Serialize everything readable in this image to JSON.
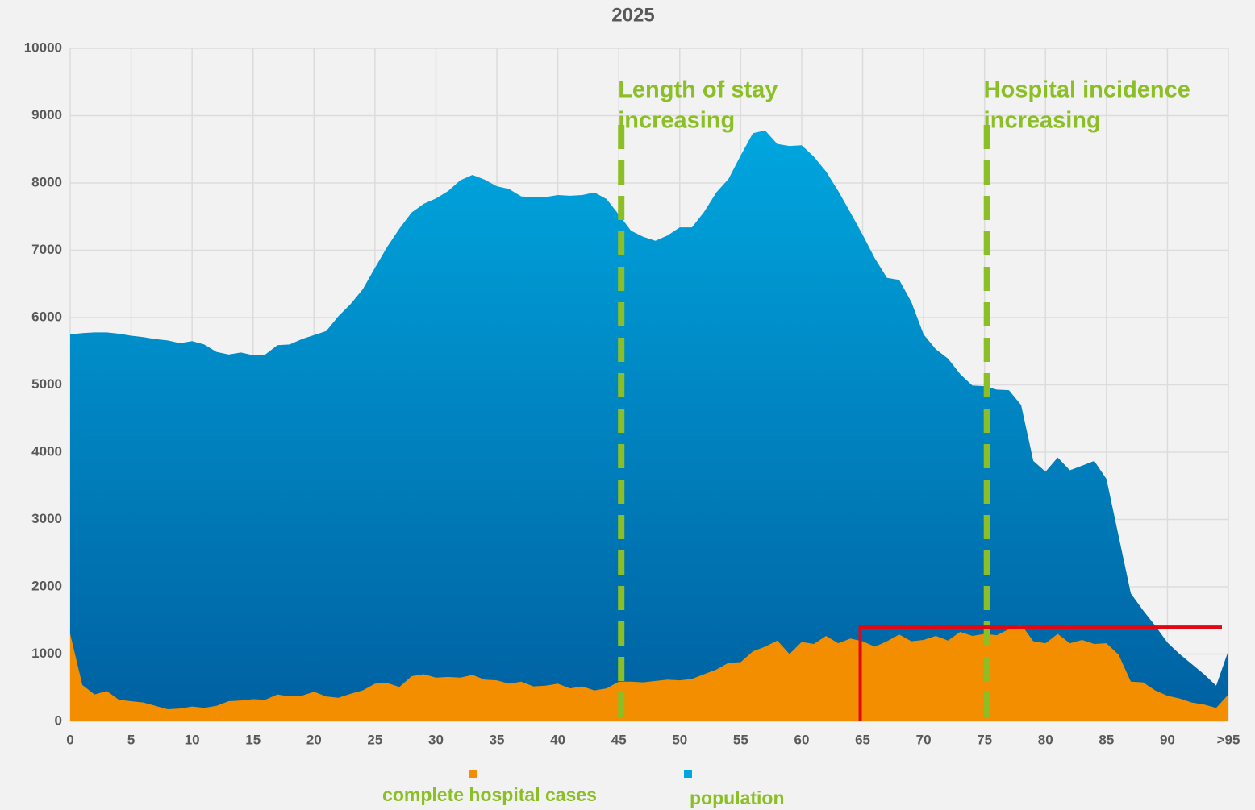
{
  "chart_data": {
    "type": "area",
    "title": "2025",
    "x": [
      0,
      1,
      2,
      3,
      4,
      5,
      6,
      7,
      8,
      9,
      10,
      11,
      12,
      13,
      14,
      15,
      16,
      17,
      18,
      19,
      20,
      21,
      22,
      23,
      24,
      25,
      26,
      27,
      28,
      29,
      30,
      31,
      32,
      33,
      34,
      35,
      36,
      37,
      38,
      39,
      40,
      41,
      42,
      43,
      44,
      45,
      46,
      47,
      48,
      49,
      50,
      51,
      52,
      53,
      54,
      55,
      56,
      57,
      58,
      59,
      60,
      61,
      62,
      63,
      64,
      65,
      66,
      67,
      68,
      69,
      70,
      71,
      72,
      73,
      74,
      75,
      76,
      77,
      78,
      79,
      80,
      81,
      82,
      83,
      84,
      85,
      86,
      87,
      88,
      89,
      90,
      91,
      92,
      93,
      94,
      95
    ],
    "series": [
      {
        "name": "population",
        "color": "#00a6df",
        "color_bottom": "#0060a0",
        "values": [
          5750,
          5770,
          5780,
          5780,
          5760,
          5730,
          5710,
          5680,
          5660,
          5620,
          5650,
          5600,
          5490,
          5450,
          5480,
          5440,
          5450,
          5590,
          5600,
          5680,
          5740,
          5800,
          6020,
          6200,
          6420,
          6740,
          7050,
          7320,
          7560,
          7690,
          7770,
          7880,
          8040,
          8120,
          8050,
          7950,
          7910,
          7800,
          7790,
          7790,
          7820,
          7810,
          7820,
          7860,
          7760,
          7530,
          7290,
          7200,
          7140,
          7220,
          7340,
          7340,
          7570,
          7860,
          8060,
          8410,
          8740,
          8780,
          8580,
          8550,
          8560,
          8390,
          8170,
          7880,
          7560,
          7230,
          6880,
          6590,
          6560,
          6230,
          5750,
          5530,
          5390,
          5160,
          4990,
          4980,
          4930,
          4920,
          4700,
          3870,
          3710,
          3920,
          3730,
          3800,
          3870,
          3600,
          2750,
          1900,
          1650,
          1420,
          1170,
          1000,
          850,
          700,
          530,
          1050
        ]
      },
      {
        "name": "complete hospital cases",
        "color": "#f28e00",
        "values": [
          1300,
          540,
          400,
          450,
          320,
          300,
          280,
          230,
          180,
          190,
          220,
          200,
          230,
          300,
          310,
          330,
          320,
          400,
          370,
          380,
          440,
          370,
          350,
          410,
          460,
          560,
          570,
          510,
          670,
          700,
          650,
          660,
          650,
          690,
          620,
          610,
          560,
          590,
          520,
          530,
          560,
          490,
          520,
          460,
          490,
          590,
          590,
          580,
          600,
          620,
          610,
          630,
          700,
          770,
          870,
          880,
          1040,
          1110,
          1200,
          1000,
          1180,
          1150,
          1270,
          1160,
          1230,
          1190,
          1110,
          1190,
          1290,
          1190,
          1210,
          1270,
          1200,
          1330,
          1270,
          1300,
          1280,
          1370,
          1440,
          1190,
          1160,
          1300,
          1160,
          1210,
          1150,
          1160,
          990,
          590,
          580,
          460,
          380,
          340,
          280,
          250,
          200,
          400
        ]
      }
    ],
    "xlim": [
      0,
      95
    ],
    "xticks": [
      0,
      5,
      10,
      15,
      20,
      25,
      30,
      35,
      40,
      45,
      50,
      55,
      60,
      65,
      70,
      75,
      80,
      85,
      90,
      {
        "value": 95,
        "label": ">95"
      }
    ],
    "ylim": [
      0,
      10000
    ],
    "yticks": [
      0,
      1000,
      2000,
      3000,
      4000,
      5000,
      6000,
      7000,
      8000,
      9000,
      10000
    ],
    "grid": true,
    "annotations": [
      {
        "x": 45,
        "lines": [
          "Length of stay",
          "increasing"
        ],
        "color": "#8cbf26"
      },
      {
        "x": 75,
        "lines": [
          "Hospital incidence",
          "increasing"
        ],
        "color": "#8cbf26"
      }
    ],
    "highlight": {
      "x": [
        65,
        95
      ],
      "y": 1400,
      "color": "#e30613"
    },
    "legend": "bottom"
  }
}
